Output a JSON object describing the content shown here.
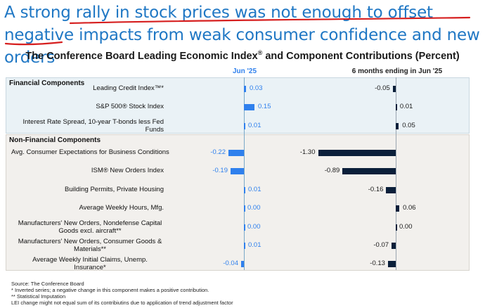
{
  "headline": {
    "part1": "A strong ",
    "part2": "rally in stock prices was not enough to offset negative",
    "part3": "impacts",
    "part4": " from weak consumer confidence and new orders"
  },
  "chart_data": {
    "type": "bar",
    "orientation": "horizontal",
    "title": "The Conference Board Leading Economic Index",
    "title_mark": "®",
    "title_suffix": " and Component Contributions (Percent)",
    "series": [
      {
        "name": "Jun  '25",
        "color": "#2f80ed",
        "values": [
          0.03,
          0.15,
          0.01,
          -0.22,
          -0.19,
          0.01,
          0.0,
          0.0,
          0.01,
          -0.04
        ]
      },
      {
        "name": "6 months ending in Jun  '25",
        "color": "#0b1f3a",
        "values": [
          -0.05,
          0.01,
          0.05,
          -1.3,
          -0.89,
          -0.16,
          0.06,
          0.0,
          -0.07,
          -0.13
        ]
      }
    ],
    "series_value_labels": [
      [
        "0.03",
        "0.15",
        "0.01",
        "-0.22",
        "-0.19",
        "0.01",
        "0.00",
        "0.00",
        "0.01",
        "-0.04"
      ],
      [
        "-0.05",
        "0.01",
        "0.05",
        "-1.30",
        "-0.89",
        "-0.16",
        "0.06",
        "0.00",
        "-0.07",
        "-0.13"
      ]
    ],
    "groups": [
      {
        "name": "Financial Components",
        "categories": [
          "Leading Credit Index™*",
          "S&P 500® Stock Index",
          "Interest Rate Spread, 10-year T-bonds less Fed Funds"
        ]
      },
      {
        "name": "Non-Financial Components",
        "categories": [
          "Avg. Consumer Expectations for Business Conditions",
          "ISM® New Orders Index",
          "Building Permits, Private Housing",
          "Average Weekly Hours, Mfg.",
          "Manufacturers' New Orders, Nondefense Capital Goods excl. aircraft**",
          "Manufacturers' New Orders, Consumer Goods & Materials**",
          "Average Weekly Initial Claims, Unemp. Insurance*"
        ]
      }
    ]
  },
  "footer": {
    "source": "Source: The Conference Board",
    "note1": "*  Inverted series; a negative change in this component makes a positive contribution.",
    "note2": "**  Statistical Imputation",
    "note3": "LEI change might not equal sum of its contribiutins due to application of trend adjustment factor"
  },
  "colors": {
    "headline": "#1f77c4",
    "monthly_bar": "#2f80ed",
    "six_month_bar": "#0b1f3a",
    "annotation": "#d61f1f"
  }
}
